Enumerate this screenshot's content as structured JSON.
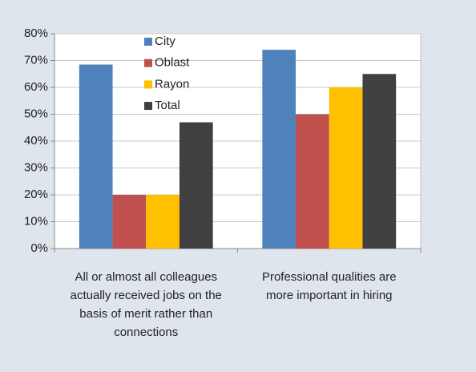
{
  "chart_data": {
    "type": "bar",
    "categories": [
      "All or almost all colleagues actually received jobs on the basis of merit rather than connections",
      "Professional qualities are more important in hiring"
    ],
    "series": [
      {
        "name": "City",
        "color": "#4f81bd",
        "values": [
          68.5,
          74
        ]
      },
      {
        "name": "Oblast",
        "color": "#c0504d",
        "values": [
          20,
          50
        ]
      },
      {
        "name": "Rayon",
        "color": "#ffc000",
        "values": [
          20,
          60
        ]
      },
      {
        "name": "Total",
        "color": "#404040",
        "values": [
          47,
          65
        ]
      }
    ],
    "ylim": [
      0,
      80
    ],
    "yticks": [
      {
        "value": 0,
        "label": "0%"
      },
      {
        "value": 10,
        "label": "10%"
      },
      {
        "value": 20,
        "label": "20%"
      },
      {
        "value": 30,
        "label": "30%"
      },
      {
        "value": 40,
        "label": "40%"
      },
      {
        "value": 50,
        "label": "50%"
      },
      {
        "value": 60,
        "label": "60%"
      },
      {
        "value": 70,
        "label": "70%"
      },
      {
        "value": 80,
        "label": "80%"
      }
    ],
    "grid": true,
    "legend": "upper left"
  }
}
